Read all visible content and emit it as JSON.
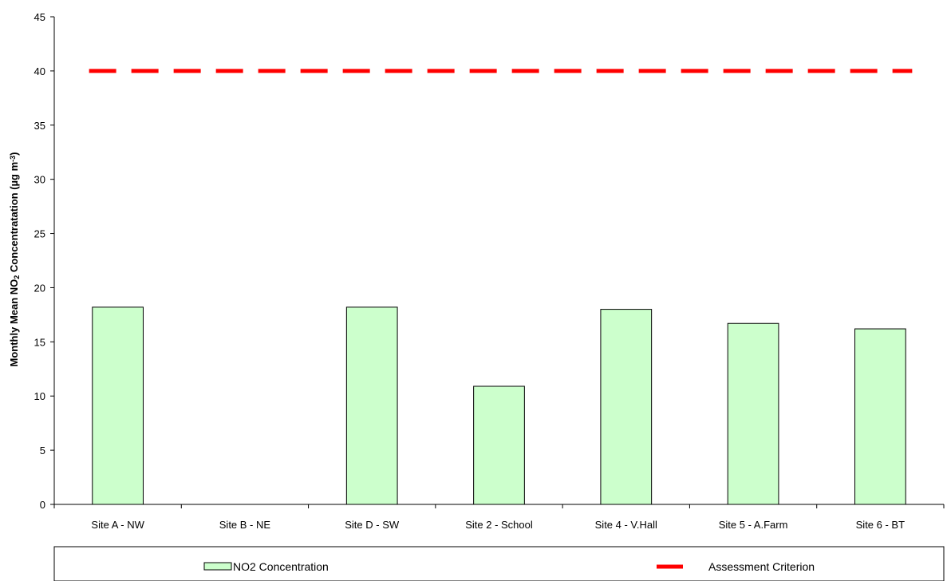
{
  "chart_data": {
    "type": "bar",
    "title": "",
    "xlabel": "",
    "ylabel_parts": [
      "Monthly Mean NO",
      "2",
      " Concentratation (µg m",
      "-3",
      ")"
    ],
    "categories": [
      "Site A - NW",
      "Site B - NE",
      "Site D - SW",
      "Site 2 - School",
      "Site 4 - V.Hall",
      "Site 5 - A.Farm",
      "Site 6 - BT"
    ],
    "series": [
      {
        "name": "NO2 Concentration",
        "values": [
          18.2,
          null,
          18.2,
          10.9,
          18.0,
          16.7,
          16.2
        ],
        "color": "#ccffcc",
        "stroke": "#000000"
      }
    ],
    "reference_line": {
      "name": "Assessment Criterion",
      "value": 40,
      "color": "#ff0000",
      "style": "dashed"
    },
    "ylim": [
      0,
      45
    ],
    "yticks": [
      0,
      5,
      10,
      15,
      20,
      25,
      30,
      35,
      40,
      45
    ],
    "grid": false,
    "legend_position": "bottom"
  }
}
